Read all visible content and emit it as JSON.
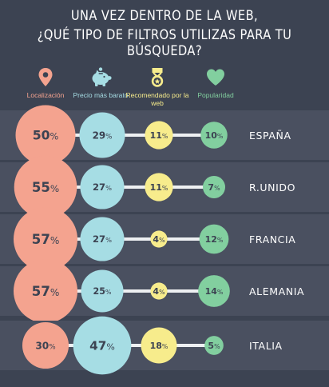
{
  "title": {
    "line1": "UNA VEZ DENTRO DE LA WEB,",
    "line2": "¿QUÉ TIPO DE FILTROS UTILIZAS PARA TU BÚSQUEDA?"
  },
  "legend": [
    {
      "label": "Localización",
      "icon": "location-pin-icon",
      "color": "#f4a38f"
    },
    {
      "label": "Precio más barato",
      "icon": "piggy-bank-icon",
      "color": "#a6dde4"
    },
    {
      "label": "Recomendado por la web",
      "icon": "medal-icon",
      "color": "#f7ec8c"
    },
    {
      "label": "Popularidad",
      "icon": "heart-icon",
      "color": "#82cf9f"
    }
  ],
  "chart_data": {
    "type": "bubble",
    "categories": [
      "ESPAÑA",
      "R.UNIDO",
      "FRANCIA",
      "ALEMANIA",
      "ITALIA"
    ],
    "series": [
      {
        "name": "Localización",
        "values": [
          50,
          55,
          57,
          57,
          30
        ],
        "color": "#f4a38f"
      },
      {
        "name": "Precio más barato",
        "values": [
          29,
          27,
          27,
          25,
          47
        ],
        "color": "#a6dde4"
      },
      {
        "name": "Recomendado por la web",
        "values": [
          11,
          11,
          4,
          4,
          18
        ],
        "color": "#f7ec8c"
      },
      {
        "name": "Popularidad",
        "values": [
          10,
          7,
          12,
          14,
          5
        ],
        "color": "#82cf9f"
      }
    ],
    "unit": "%",
    "text_color": "#3c4352",
    "connector_color": "#eef0f2",
    "band_color": "#4a5060"
  }
}
